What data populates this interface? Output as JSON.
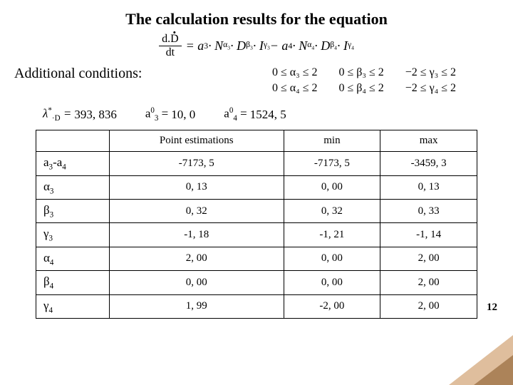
{
  "title": "The calculation results for the equation",
  "equation_text": "d.Ḋ / dt = a₃ · Nᵅ³ · Dᵝ³ · Iᵞ³ − a₄ · Nᵅ⁴ · Dᵝ⁴ · Iᵞ⁴",
  "conditions_label": "Additional conditions:",
  "conditions": {
    "col1": [
      "0 ≤ α₃ ≤ 2",
      "0 ≤ α₄ ≤ 2"
    ],
    "col2": [
      "0 ≤ β₃ ≤ 2",
      "0 ≤ β₄ ≤ 2"
    ],
    "col3": [
      "−2 ≤ γ₃ ≤ 2",
      "−2 ≤ γ₄ ≤ 2"
    ]
  },
  "values": {
    "lambda_label": "λ*·D =",
    "lambda_value": "393, 836",
    "a3_label": "a₃⁰ =",
    "a3_value": "10, 0",
    "a4_label": "a₄⁰ =",
    "a4_value": "1524, 5"
  },
  "table": {
    "headers": [
      "",
      "Point estimations",
      "min",
      "max"
    ],
    "rows": [
      {
        "label": "a₃-a₄",
        "cells": [
          "-7173, 5",
          "-7173, 5",
          "-3459, 3"
        ]
      },
      {
        "label": "α₃",
        "cells": [
          "0, 13",
          "0, 00",
          "0, 13"
        ]
      },
      {
        "label": "β₃",
        "cells": [
          "0, 32",
          "0, 32",
          "0, 33"
        ]
      },
      {
        "label": "γ₃",
        "cells": [
          "-1, 18",
          "-1, 21",
          "-1, 14"
        ]
      },
      {
        "label": "α₄",
        "cells": [
          "2, 00",
          "0, 00",
          "2, 00"
        ]
      },
      {
        "label": "β₄",
        "cells": [
          "0, 00",
          "0, 00",
          "2, 00"
        ]
      },
      {
        "label": "γ₄",
        "cells": [
          "1, 99",
          "-2, 00",
          "2, 00"
        ]
      }
    ]
  },
  "page_number": "12",
  "colors": {
    "text": "#000000",
    "background": "#ffffff",
    "accent_light": "#d9b38c",
    "accent_dark": "#a67c52",
    "table_border": "#000000"
  }
}
